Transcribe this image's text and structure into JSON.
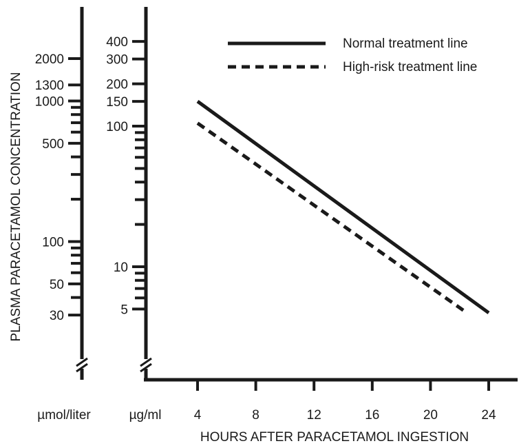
{
  "chart_data": {
    "type": "line",
    "ylabel": "PLASMA  PARACETAMOL CONCENTRATION",
    "xlabel": "HOURS AFTER PARACETAMOL INGESTION",
    "x_ticks": [
      4,
      8,
      12,
      16,
      20,
      24
    ],
    "xlim": [
      0,
      24
    ],
    "y_scale": "log",
    "ylim_ug_ml": [
      4.5,
      450
    ],
    "units": {
      "umol": "µmol/liter",
      "ug": "µg/ml"
    },
    "y_ticks_ug_ml": [
      "400",
      "300",
      "200",
      "150",
      "100",
      "10",
      "5"
    ],
    "y_ticks_umol_l": [
      "2000",
      "1300",
      "1000",
      "500",
      "100",
      "50",
      "30"
    ],
    "series": [
      {
        "name": "Normal treatment line",
        "style": "solid",
        "x": [
          4,
          24
        ],
        "y": [
          150,
          4.7
        ]
      },
      {
        "name": "High-risk treatment line",
        "style": "dashed",
        "x": [
          4,
          22.5
        ],
        "y": [
          105,
          4.7
        ]
      }
    ],
    "legend_position": "top-right",
    "colors": {
      "line": "#1a1a1a",
      "background": "#ffffff"
    }
  }
}
